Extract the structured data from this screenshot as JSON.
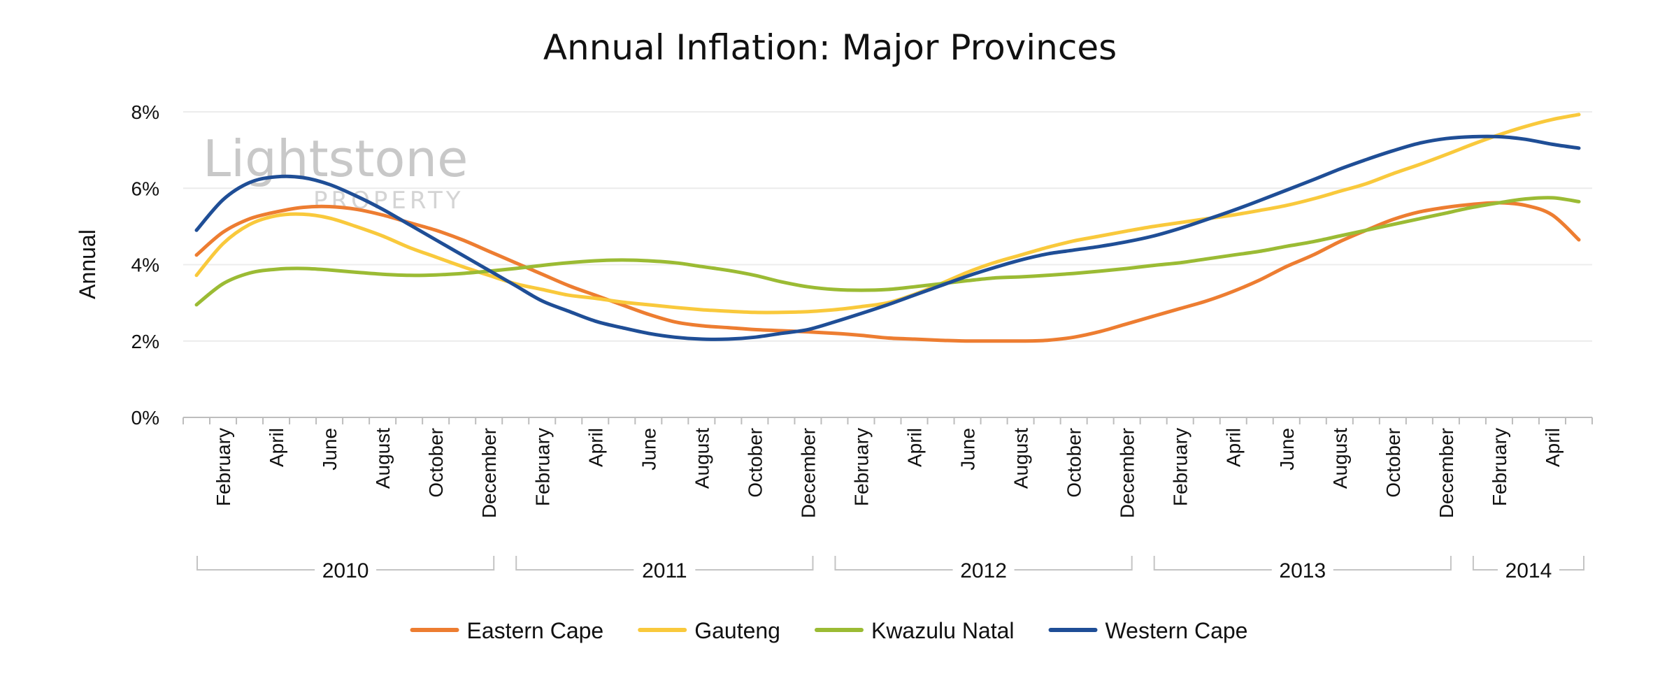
{
  "chart_data": {
    "type": "line",
    "title": "Annual Inflation: Major Provinces",
    "ylabel": "Annual",
    "xlabel": "",
    "ylim": [
      0,
      8
    ],
    "yticks": [
      "0%",
      "2%",
      "4%",
      "6%",
      "8%"
    ],
    "month_ticks": [
      "February",
      "April",
      "June",
      "August",
      "October",
      "December",
      "February",
      "April",
      "June",
      "August",
      "October",
      "December",
      "February",
      "April",
      "June",
      "August",
      "October",
      "December",
      "February",
      "April",
      "June",
      "August",
      "October",
      "December",
      "February",
      "April"
    ],
    "years": [
      {
        "label": "2010",
        "start": 0,
        "end": 12
      },
      {
        "label": "2011",
        "start": 12,
        "end": 24
      },
      {
        "label": "2012",
        "start": 24,
        "end": 36
      },
      {
        "label": "2013",
        "start": 36,
        "end": 48
      },
      {
        "label": "2014",
        "start": 48,
        "end": 53
      }
    ],
    "legend_position": "bottom",
    "grid": true,
    "watermark": {
      "line1": "Lightstone",
      "line2": "PROPERTY"
    },
    "x": [
      "2010-01",
      "2010-02",
      "2010-03",
      "2010-04",
      "2010-05",
      "2010-06",
      "2010-07",
      "2010-08",
      "2010-09",
      "2010-10",
      "2010-11",
      "2010-12",
      "2011-01",
      "2011-02",
      "2011-03",
      "2011-04",
      "2011-05",
      "2011-06",
      "2011-07",
      "2011-08",
      "2011-09",
      "2011-10",
      "2011-11",
      "2011-12",
      "2012-01",
      "2012-02",
      "2012-03",
      "2012-04",
      "2012-05",
      "2012-06",
      "2012-07",
      "2012-08",
      "2012-09",
      "2012-10",
      "2012-11",
      "2012-12",
      "2013-01",
      "2013-02",
      "2013-03",
      "2013-04",
      "2013-05",
      "2013-06",
      "2013-07",
      "2013-08",
      "2013-09",
      "2013-10",
      "2013-11",
      "2013-12",
      "2014-01",
      "2014-02",
      "2014-03",
      "2014-04",
      "2014-05"
    ],
    "series": [
      {
        "name": "Eastern Cape",
        "color": "#ed7d31",
        "values": [
          4.25,
          4.85,
          5.2,
          5.38,
          5.5,
          5.52,
          5.45,
          5.3,
          5.1,
          4.9,
          4.65,
          4.35,
          4.05,
          3.75,
          3.45,
          3.2,
          2.95,
          2.7,
          2.5,
          2.4,
          2.35,
          2.3,
          2.27,
          2.24,
          2.2,
          2.15,
          2.08,
          2.05,
          2.02,
          2.0,
          2.0,
          2.0,
          2.02,
          2.1,
          2.25,
          2.45,
          2.65,
          2.85,
          3.05,
          3.3,
          3.6,
          3.95,
          4.25,
          4.6,
          4.9,
          5.18,
          5.38,
          5.5,
          5.58,
          5.62,
          5.55,
          5.3,
          4.65
        ]
      },
      {
        "name": "Gauteng",
        "color": "#f9c93c",
        "values": [
          3.72,
          4.55,
          5.05,
          5.28,
          5.32,
          5.22,
          5.0,
          4.75,
          4.45,
          4.2,
          3.95,
          3.72,
          3.5,
          3.35,
          3.2,
          3.12,
          3.02,
          2.95,
          2.88,
          2.82,
          2.78,
          2.75,
          2.75,
          2.77,
          2.82,
          2.9,
          3.0,
          3.22,
          3.5,
          3.8,
          4.05,
          4.25,
          4.45,
          4.62,
          4.75,
          4.88,
          5.0,
          5.1,
          5.2,
          5.3,
          5.42,
          5.55,
          5.72,
          5.92,
          6.12,
          6.38,
          6.62,
          6.88,
          7.15,
          7.4,
          7.62,
          7.8,
          7.93
        ]
      },
      {
        "name": "Kwazulu Natal",
        "color": "#9bbb34",
        "values": [
          2.95,
          3.5,
          3.78,
          3.88,
          3.9,
          3.86,
          3.8,
          3.75,
          3.72,
          3.73,
          3.77,
          3.83,
          3.9,
          3.98,
          4.05,
          4.1,
          4.12,
          4.1,
          4.05,
          3.95,
          3.85,
          3.72,
          3.55,
          3.42,
          3.35,
          3.33,
          3.35,
          3.42,
          3.5,
          3.58,
          3.65,
          3.68,
          3.72,
          3.77,
          3.83,
          3.9,
          3.98,
          4.05,
          4.15,
          4.25,
          4.35,
          4.48,
          4.6,
          4.75,
          4.9,
          5.05,
          5.2,
          5.35,
          5.5,
          5.62,
          5.72,
          5.75,
          5.65
        ]
      },
      {
        "name": "Western Cape",
        "color": "#1f4e96",
        "values": [
          4.9,
          5.7,
          6.15,
          6.3,
          6.28,
          6.1,
          5.8,
          5.45,
          5.05,
          4.65,
          4.25,
          3.85,
          3.45,
          3.05,
          2.78,
          2.52,
          2.35,
          2.2,
          2.1,
          2.05,
          2.05,
          2.1,
          2.2,
          2.3,
          2.5,
          2.72,
          2.95,
          3.2,
          3.45,
          3.7,
          3.92,
          4.12,
          4.28,
          4.38,
          4.48,
          4.6,
          4.75,
          4.95,
          5.18,
          5.42,
          5.68,
          5.95,
          6.22,
          6.5,
          6.75,
          6.98,
          7.18,
          7.3,
          7.35,
          7.35,
          7.28,
          7.15,
          7.05
        ]
      }
    ]
  }
}
